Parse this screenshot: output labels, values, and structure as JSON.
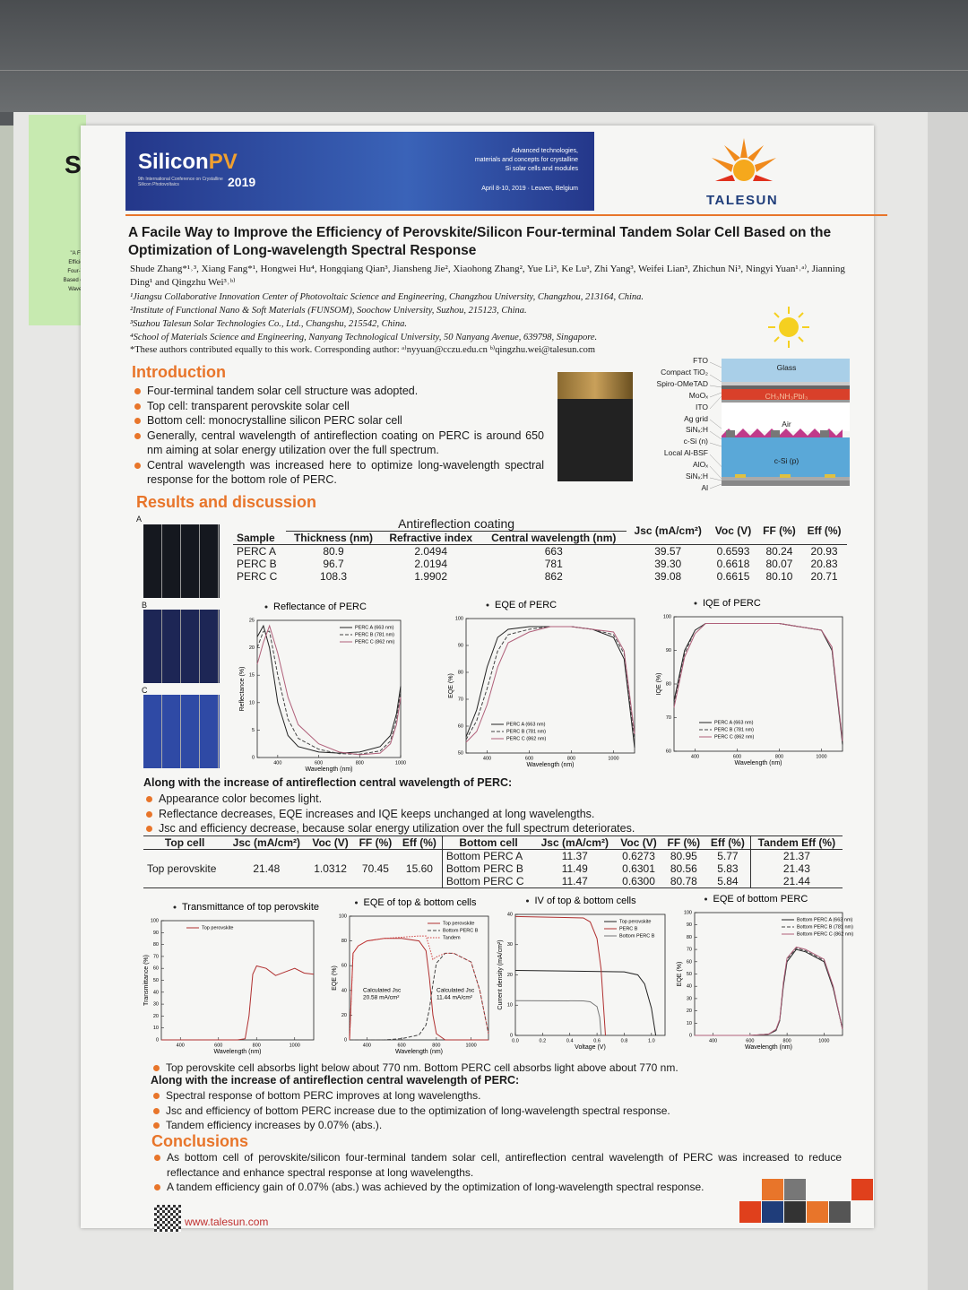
{
  "left_note": {
    "letter": "S",
    "lines": [
      "\"A Fac",
      "Efficien",
      "Four-Te",
      "Based on",
      "Wavele"
    ]
  },
  "banner": {
    "brand1": "Silicon",
    "brand2": "PV",
    "conference": "9th International Conference on Crystalline Silicon Photovoltaics",
    "year": "2019",
    "tagline": [
      "Advanced technologies,",
      "materials and concepts for crystalline",
      "Si solar cells and modules"
    ],
    "date": "April 8-10, 2019 · Leuven, Belgium"
  },
  "logo": "TALESUN",
  "title": "A Facile Way to Improve the Efficiency of Perovskite/Silicon Four-terminal Tandem Solar Cell Based on the Optimization of Long-wavelength Spectral Response",
  "authors": "Shude Zhang*¹˒³, Xiang Fang*¹, Hongwei Hu⁴, Hongqiang Qian³, Jiansheng Jie², Xiaohong Zhang², Yue Li³, Ke Lu³, Zhi Yang³, Weifei Lian³, Zhichun Ni³, Ningyi Yuan¹˒ᵃ⁾, Jianning Ding¹ and Qingzhu Wei³˒ᵇ⁾",
  "affiliations": [
    "¹Jiangsu Collaborative Innovation Center of Photovoltaic Science and Engineering, Changzhou University, Changzhou, 213164, China.",
    "²Institute of Functional Nano & Soft Materials (FUNSOM), Soochow University, Suzhou, 215123, China.",
    "³Suzhou Talesun Solar Technologies Co., Ltd., Changshu, 215542, China.",
    "⁴School of Materials Science and Engineering, Nanyang Technological University, 50 Nanyang Avenue, 639798, Singapore."
  ],
  "note": "*These authors contributed equally to this work. Corresponding author: ᵃ⁾nyyuan@cczu.edu.cn ᵇ⁾qingzhu.wei@talesun.com",
  "introduction": {
    "heading": "Introduction",
    "bullets": [
      "Four-terminal tandem solar cell structure was adopted.",
      "Top cell: transparent perovskite solar cell",
      "Bottom cell: monocrystalline silicon PERC solar cell",
      "Generally, central wavelength of antireflection coating on PERC is around 650 nm aiming at solar energy utilization over the full spectrum.",
      "Central wavelength was increased here to optimize long-wavelength spectral response for the bottom role of PERC."
    ]
  },
  "structure": {
    "labels": [
      "FTO",
      "Compact TiO₂",
      "Spiro-OMeTAD",
      "MoOₓ",
      "ITO",
      "Ag grid",
      "SiNₓ:H",
      "c-Si (n)",
      "Local Al-BSF",
      "AlOₓ",
      "SiNₓ:H",
      "Al"
    ],
    "layers": [
      "Glass",
      "CH₃NH₃PbI₃",
      "Air",
      "c-Si (p)"
    ]
  },
  "results": {
    "heading": "Results and discussion",
    "photo_labels": [
      "A",
      "B",
      "C"
    ]
  },
  "table1": {
    "sample": "Sample",
    "group": "Antireflection coating",
    "sub": [
      "Thickness (nm)",
      "Refractive index",
      "Central wavelength (nm)"
    ],
    "params": [
      "Jsc (mA/cm²)",
      "Voc (V)",
      "FF (%)",
      "Eff (%)"
    ],
    "rows": [
      [
        "PERC A",
        "80.9",
        "2.0494",
        "663",
        "39.57",
        "0.6593",
        "80.24",
        "20.93"
      ],
      [
        "PERC B",
        "96.7",
        "2.0194",
        "781",
        "39.30",
        "0.6618",
        "80.07",
        "20.83"
      ],
      [
        "PERC C",
        "108.3",
        "1.9902",
        "862",
        "39.08",
        "0.6615",
        "80.10",
        "20.71"
      ]
    ]
  },
  "chart_data": [
    {
      "type": "line",
      "title": "Reflectance of PERC",
      "xlabel": "Wavelength (nm)",
      "ylabel": "Reflectance (%)",
      "xlim": [
        300,
        1000
      ],
      "xticks": [
        400,
        600,
        800,
        1000
      ],
      "ylim": [
        0,
        25
      ],
      "yticks": [
        0,
        5,
        10,
        15,
        20,
        25
      ],
      "legend": "upper right",
      "series": [
        {
          "name": "PERC A (663 nm)",
          "color": "#222222",
          "dash": "solid",
          "x": [
            300,
            330,
            360,
            400,
            450,
            500,
            600,
            700,
            800,
            900,
            950,
            980,
            1000
          ],
          "values": [
            22,
            24,
            20,
            10,
            4,
            2,
            1,
            0.8,
            1,
            2,
            4,
            8,
            13
          ]
        },
        {
          "name": "PERC B (781 nm)",
          "color": "#444444",
          "dash": "dashed",
          "x": [
            300,
            330,
            360,
            400,
            450,
            500,
            600,
            700,
            800,
            900,
            950,
            980,
            1000
          ],
          "values": [
            20,
            23,
            23,
            15,
            7,
            3.5,
            1.5,
            0.7,
            0.6,
            1.2,
            3,
            7,
            12
          ]
        },
        {
          "name": "PERC C (862 nm)",
          "color": "#b0607a",
          "dash": "solid",
          "x": [
            300,
            330,
            360,
            400,
            450,
            500,
            600,
            700,
            800,
            900,
            950,
            980,
            1000
          ],
          "values": [
            17,
            21,
            24,
            19,
            11,
            6,
            2.5,
            1,
            0.5,
            0.8,
            2.5,
            6,
            11
          ]
        }
      ]
    },
    {
      "type": "line",
      "title": "EQE of PERC",
      "xlabel": "Wavelength (nm)",
      "ylabel": "EQE (%)",
      "xlim": [
        300,
        1100
      ],
      "xticks": [
        400,
        600,
        800,
        1000
      ],
      "ylim": [
        50,
        100
      ],
      "yticks": [
        50,
        60,
        70,
        80,
        90,
        100
      ],
      "legend": "lower left",
      "series": [
        {
          "name": "PERC A (663 nm)",
          "color": "#222222",
          "dash": "solid",
          "x": [
            300,
            350,
            400,
            450,
            500,
            600,
            700,
            800,
            900,
            1000,
            1050,
            1100
          ],
          "values": [
            56,
            66,
            82,
            93,
            96,
            97,
            97,
            97,
            96,
            93,
            85,
            52
          ]
        },
        {
          "name": "PERC B (781 nm)",
          "color": "#444444",
          "dash": "dashed",
          "x": [
            300,
            350,
            400,
            450,
            500,
            600,
            700,
            800,
            900,
            1000,
            1050,
            1100
          ],
          "values": [
            55,
            62,
            74,
            88,
            94,
            96,
            97,
            97,
            96,
            94,
            87,
            55
          ]
        },
        {
          "name": "PERC C (862 nm)",
          "color": "#b0607a",
          "dash": "solid",
          "x": [
            300,
            350,
            400,
            450,
            500,
            600,
            700,
            800,
            900,
            1000,
            1050,
            1100
          ],
          "values": [
            54,
            58,
            68,
            82,
            91,
            95,
            97,
            97,
            96,
            95,
            88,
            57
          ]
        }
      ]
    },
    {
      "type": "line",
      "title": "IQE of PERC",
      "xlabel": "Wavelength (nm)",
      "ylabel": "IQE (%)",
      "xlim": [
        300,
        1100
      ],
      "xticks": [
        400,
        600,
        800,
        1000
      ],
      "ylim": [
        60,
        100
      ],
      "yticks": [
        60,
        70,
        80,
        90,
        100
      ],
      "legend": "lower left",
      "series": [
        {
          "name": "PERC A (663 nm)",
          "color": "#222222",
          "dash": "solid",
          "x": [
            300,
            350,
            400,
            450,
            500,
            600,
            700,
            800,
            900,
            1000,
            1050,
            1100
          ],
          "values": [
            75,
            90,
            96,
            98,
            98,
            98,
            98,
            98,
            97,
            96,
            90,
            62
          ]
        },
        {
          "name": "PERC B (781 nm)",
          "color": "#444444",
          "dash": "dashed",
          "x": [
            300,
            350,
            400,
            450,
            500,
            600,
            700,
            800,
            900,
            1000,
            1050,
            1100
          ],
          "values": [
            74,
            89,
            96,
            98,
            98,
            98,
            98,
            98,
            97,
            96,
            90,
            63
          ]
        },
        {
          "name": "PERC C (862 nm)",
          "color": "#b0607a",
          "dash": "solid",
          "x": [
            300,
            350,
            400,
            450,
            500,
            600,
            700,
            800,
            900,
            1000,
            1050,
            1100
          ],
          "values": [
            73,
            88,
            95,
            98,
            98,
            98,
            98,
            98,
            97,
            96,
            91,
            63
          ]
        }
      ]
    },
    {
      "type": "line",
      "title": "Transmittance of top perovskite",
      "xlabel": "Wavelength (nm)",
      "ylabel": "Transmittance (%)",
      "xlim": [
        300,
        1100
      ],
      "xticks": [
        400,
        600,
        800,
        1000
      ],
      "ylim": [
        0,
        100
      ],
      "yticks": [
        0,
        10,
        20,
        30,
        40,
        50,
        60,
        70,
        80,
        90,
        100
      ],
      "legend": "upper left",
      "series": [
        {
          "name": "Top perovskite",
          "color": "#b03030",
          "dash": "solid",
          "x": [
            300,
            600,
            700,
            740,
            760,
            780,
            800,
            850,
            900,
            950,
            1000,
            1050,
            1100
          ],
          "values": [
            0,
            0,
            0,
            1,
            20,
            55,
            62,
            60,
            54,
            57,
            60,
            56,
            55
          ]
        }
      ]
    },
    {
      "type": "line",
      "title": "EQE of top & bottom cells",
      "xlabel": "Wavelength (nm)",
      "ylabel": "EQE (%)",
      "xlim": [
        300,
        1100
      ],
      "xticks": [
        400,
        600,
        800,
        1000
      ],
      "ylim": [
        0,
        100
      ],
      "yticks": [
        0,
        20,
        40,
        60,
        80,
        100
      ],
      "legend": "upper right",
      "annotations": [
        [
          "Calculated Jsc",
          "20.58 mA/cm²"
        ],
        [
          "Calculated Jsc",
          "11.44 mA/cm²"
        ]
      ],
      "series": [
        {
          "name": "Top perovskite",
          "color": "#b03030",
          "dash": "solid",
          "x": [
            300,
            320,
            350,
            400,
            500,
            600,
            700,
            740,
            760,
            780,
            800,
            850,
            900,
            1000,
            1050,
            1100
          ],
          "values": [
            0,
            70,
            76,
            80,
            82,
            82,
            80,
            72,
            50,
            20,
            5,
            0,
            0,
            0,
            0,
            0
          ]
        },
        {
          "name": "Bottom PERC B",
          "color": "#444444",
          "dash": "dashed",
          "x": [
            300,
            320,
            350,
            400,
            500,
            600,
            700,
            740,
            760,
            780,
            800,
            850,
            900,
            1000,
            1050,
            1100
          ],
          "values": [
            0,
            0,
            0,
            0,
            0,
            1,
            4,
            12,
            25,
            45,
            62,
            70,
            70,
            63,
            40,
            5
          ]
        },
        {
          "name": "Tandem",
          "color": "#d04040",
          "dash": "dotted",
          "x": [
            300,
            320,
            350,
            400,
            500,
            600,
            700,
            740,
            760,
            780,
            800,
            850,
            900,
            1000,
            1050,
            1100
          ],
          "values": [
            0,
            70,
            76,
            80,
            82,
            83,
            84,
            84,
            75,
            65,
            67,
            70,
            70,
            63,
            40,
            5
          ]
        }
      ]
    },
    {
      "type": "line",
      "title": "IV of top & bottom cells",
      "xlabel": "Voltage (V)",
      "ylabel": "Current density (mA/cm²)",
      "xlim": [
        0,
        1.1
      ],
      "xticks": [
        {
          "value": 0,
          "label": "0.0"
        },
        0.2,
        0.4,
        0.6,
        0.8,
        {
          "value": 1,
          "label": "1.0"
        }
      ],
      "ylim": [
        0,
        40
      ],
      "yticks": [
        0,
        10,
        20,
        30,
        40
      ],
      "legend": "upper right",
      "series": [
        {
          "name": "Top perovskite",
          "color": "#222222",
          "dash": "solid",
          "x": [
            0,
            0.8,
            0.9,
            0.95,
            1.0,
            1.0312
          ],
          "values": [
            21.48,
            21,
            20,
            17,
            9,
            0
          ]
        },
        {
          "name": "PERC B",
          "color": "#b03030",
          "dash": "solid",
          "x": [
            0,
            0.5,
            0.55,
            0.6,
            0.63,
            0.6618
          ],
          "values": [
            39.3,
            38.8,
            37.5,
            32,
            22,
            0
          ]
        },
        {
          "name": "Bottom PERC B",
          "color": "#777777",
          "dash": "solid",
          "x": [
            0,
            0.5,
            0.55,
            0.6,
            0.62,
            0.6301
          ],
          "values": [
            11.49,
            11.4,
            11.1,
            9.5,
            6,
            0
          ]
        }
      ]
    },
    {
      "type": "line",
      "title": "EQE of bottom PERC",
      "xlabel": "Wavelength (nm)",
      "ylabel": "EQE (%)",
      "xlim": [
        300,
        1100
      ],
      "xticks": [
        400,
        600,
        800,
        1000
      ],
      "ylim": [
        0,
        100
      ],
      "yticks": [
        0,
        10,
        20,
        30,
        40,
        50,
        60,
        70,
        80,
        90,
        100
      ],
      "legend": "upper right",
      "series": [
        {
          "name": "Bottom PERC A (663 nm)",
          "color": "#222222",
          "dash": "solid",
          "x": [
            300,
            600,
            700,
            740,
            760,
            780,
            800,
            850,
            900,
            1000,
            1050,
            1100
          ],
          "values": [
            0,
            0,
            1,
            4,
            12,
            40,
            60,
            70,
            68,
            60,
            38,
            5
          ]
        },
        {
          "name": "Bottom PERC B (781 nm)",
          "color": "#444444",
          "dash": "dashed",
          "x": [
            300,
            600,
            700,
            740,
            760,
            780,
            800,
            850,
            900,
            1000,
            1050,
            1100
          ],
          "values": [
            0,
            0,
            1,
            4,
            12,
            42,
            62,
            71,
            69,
            61,
            39,
            5
          ]
        },
        {
          "name": "Bottom PERC C (862 nm)",
          "color": "#b0607a",
          "dash": "solid",
          "x": [
            300,
            600,
            700,
            740,
            760,
            780,
            800,
            850,
            900,
            1000,
            1050,
            1100
          ],
          "values": [
            0,
            0,
            1,
            5,
            13,
            43,
            63,
            72,
            70,
            62,
            40,
            5
          ]
        }
      ]
    }
  ],
  "findings1": {
    "heading": "Along with the increase of antireflection central wavelength of PERC:",
    "bullets": [
      "Appearance color becomes light.",
      "Reflectance decreases, EQE increases and IQE keeps unchanged at long wavelengths.",
      "Jsc and efficiency decrease, because solar energy utilization over the full spectrum deteriorates."
    ]
  },
  "table2": {
    "headers": [
      "Top cell",
      "Jsc (mA/cm²)",
      "Voc (V)",
      "FF (%)",
      "Eff (%)",
      "Bottom cell",
      "Jsc (mA/cm²)",
      "Voc (V)",
      "FF (%)",
      "Eff (%)",
      "Tandem Eff (%)"
    ],
    "top": [
      "Top perovskite",
      "21.48",
      "1.0312",
      "70.45",
      "15.60"
    ],
    "bottom": [
      [
        "Bottom PERC A",
        "11.37",
        "0.6273",
        "80.95",
        "5.77",
        "21.37"
      ],
      [
        "Bottom PERC B",
        "11.49",
        "0.6301",
        "80.56",
        "5.83",
        "21.43"
      ],
      [
        "Bottom PERC C",
        "11.47",
        "0.6300",
        "80.78",
        "5.84",
        "21.44"
      ]
    ]
  },
  "findings2": {
    "lead": "Top perovskite cell absorbs light below about 770 nm. Bottom PERC cell absorbs light above about 770 nm.",
    "heading": "Along with the increase of antireflection central wavelength of PERC:",
    "bullets": [
      "Spectral response of bottom PERC improves at long wavelengths.",
      "Jsc and efficiency of bottom PERC increase due to the optimization of long-wavelength spectral response.",
      "Tandem efficiency increases by 0.07% (abs.)."
    ]
  },
  "conclusions": {
    "heading": "Conclusions",
    "bullets": [
      "As bottom cell of perovskite/silicon four-terminal tandem solar cell, antireflection central wavelength of PERC was increased to reduce reflectance and enhance spectral response at long wavelengths.",
      "A tandem efficiency gain of 0.07% (abs.) was achieved by the optimization of long-wavelength spectral response."
    ]
  },
  "footer": "www.talesun.com"
}
